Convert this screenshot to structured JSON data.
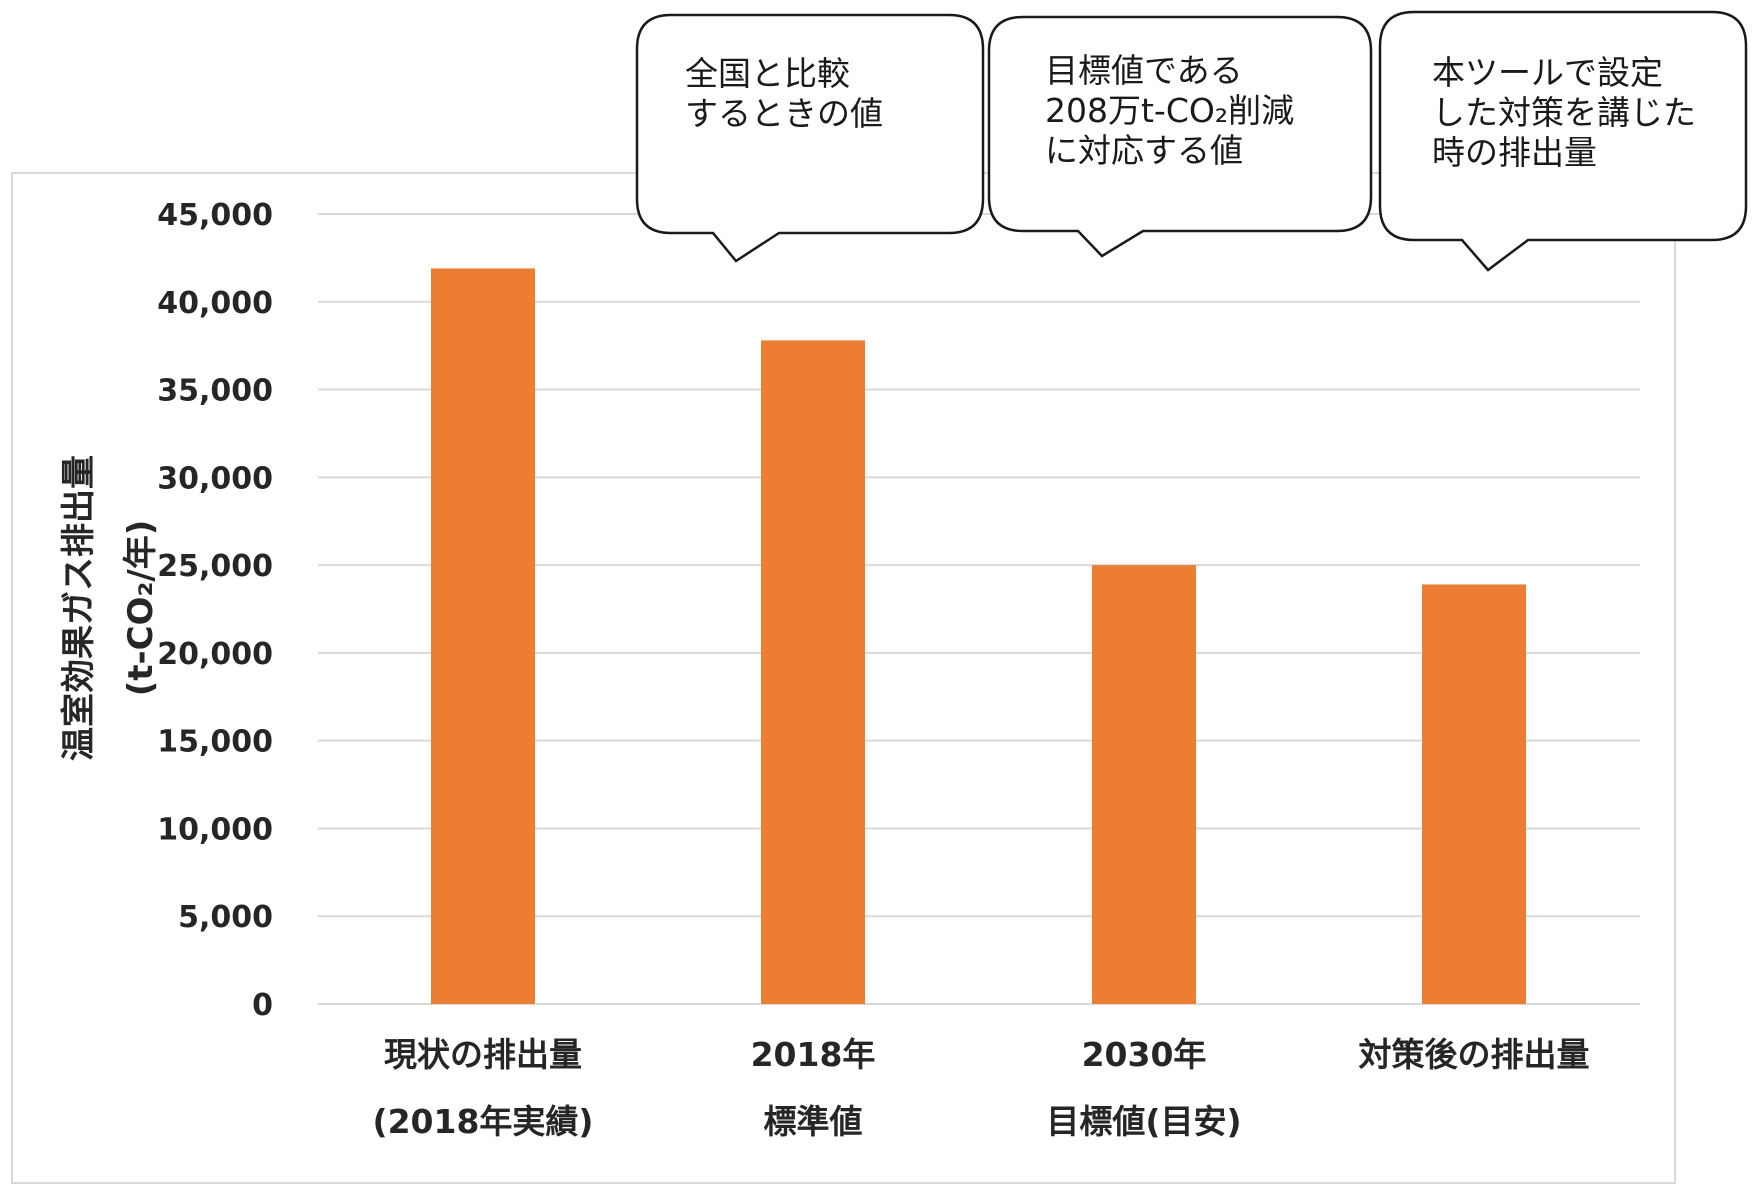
{
  "chart_data": {
    "type": "bar",
    "categories": [
      [
        "現状の排出量",
        "(2018年実績)"
      ],
      [
        "2018年",
        "標準値"
      ],
      [
        "2030年",
        "目標値(目安)"
      ],
      [
        "対策後の排出量"
      ]
    ],
    "values": [
      41900,
      37800,
      25000,
      23900
    ],
    "ylim": [
      0,
      45000
    ],
    "yticks": [
      0,
      5000,
      10000,
      15000,
      20000,
      25000,
      30000,
      35000,
      40000,
      45000
    ],
    "ytick_labels": [
      "0",
      "5,000",
      "10,000",
      "15,000",
      "20,000",
      "25,000",
      "30,000",
      "35,000",
      "40,000",
      "45,000"
    ],
    "ylabel": {
      "line1": "温室効果ガス排出量",
      "line2": "(t-CO₂/年)"
    },
    "grid": true,
    "legend": "none",
    "bar_color": "#ED7D31",
    "callouts": [
      {
        "lines": [
          "全国と比較",
          "するときの値"
        ]
      },
      {
        "lines": [
          "目標値である",
          "208万t-CO₂削減",
          "に対応する値"
        ]
      },
      {
        "lines": [
          "本ツールで設定",
          "した対策を講じた",
          "時の排出量"
        ]
      }
    ]
  }
}
